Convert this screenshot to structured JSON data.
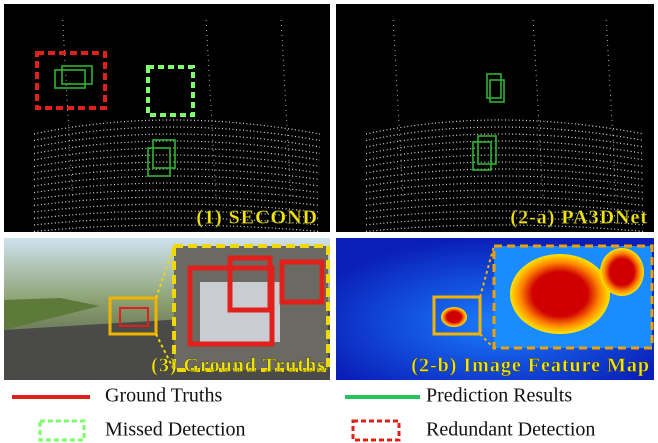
{
  "panels": [
    {
      "label": "(1) SECOND"
    },
    {
      "label": "(2-a) PA3DNet"
    },
    {
      "label": "(3) Ground Truths"
    },
    {
      "label": "(2-b) Image Feature Map"
    }
  ],
  "legend": [
    {
      "label": "Ground Truths"
    },
    {
      "label": "Prediction Results"
    },
    {
      "label": "Missed Detection"
    },
    {
      "label": "Redundant Detection"
    }
  ]
}
